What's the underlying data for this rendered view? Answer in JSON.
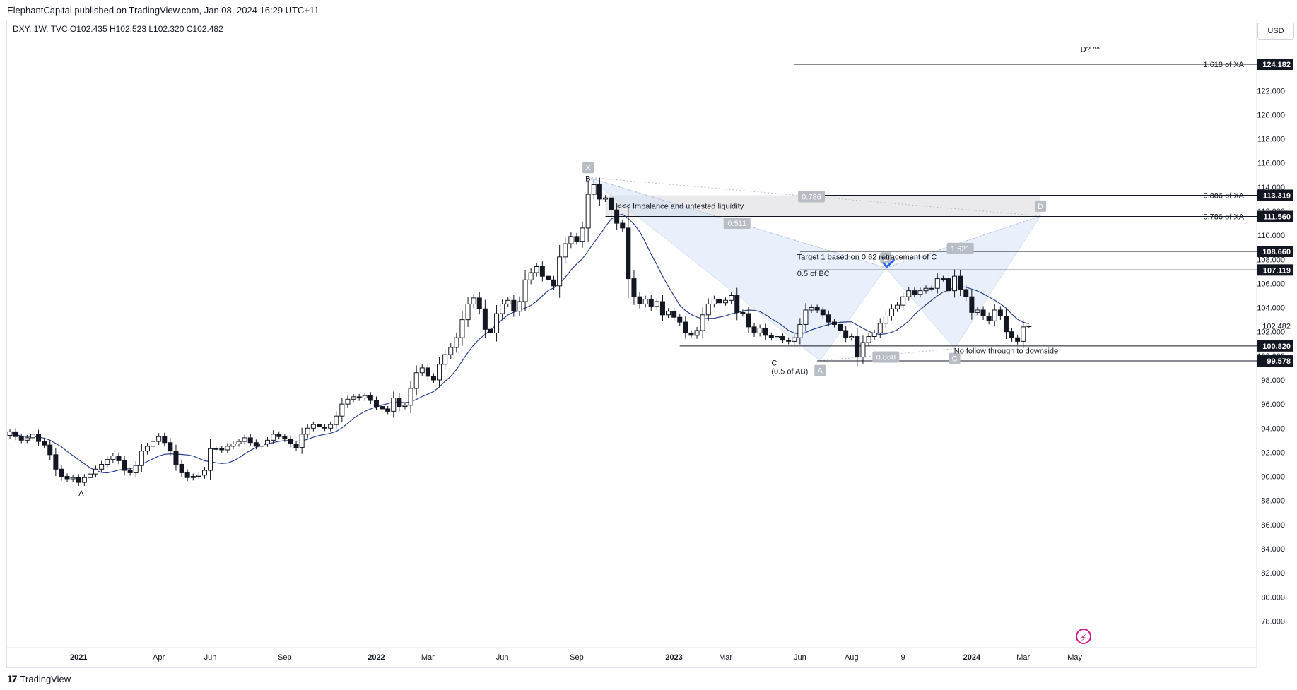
{
  "header": {
    "publisher": "ElephantCapital published on TradingView.com, Jan 08, 2024 16:29 UTC+11",
    "symbol_line": "DXY, 1W, TVC  O102.435  H102.523  L102.320  C102.482"
  },
  "currency": "USD",
  "footer": {
    "logo": "17",
    "brand": "TradingView"
  },
  "icons": {
    "bolt": "lightning-bolt-icon"
  },
  "chart_data": {
    "type": "candlestick",
    "symbol": "DXY",
    "interval": "1W",
    "ohlc_last": {
      "open": 102.435,
      "high": 102.523,
      "low": 102.32,
      "close": 102.482
    },
    "ylim": [
      76.5,
      126.0
    ],
    "y_ticks": [
      "78.000",
      "80.000",
      "82.000",
      "84.000",
      "86.000",
      "88.000",
      "90.000",
      "92.000",
      "94.000",
      "96.000",
      "98.000",
      "100.000",
      "102.000",
      "104.000",
      "106.000",
      "108.000",
      "110.000",
      "112.000",
      "114.000",
      "116.000",
      "118.000",
      "120.000",
      "122.000"
    ],
    "x_labels": [
      "2021",
      "Apr",
      "Jun",
      "Sep",
      "2022",
      "Mar",
      "Jun",
      "Sep",
      "2023",
      "Mar",
      "Jun",
      "Aug",
      "9",
      "2024",
      "Mar",
      "May"
    ],
    "bar_count": 185,
    "x_label_bars": [
      12,
      26,
      35,
      48,
      64,
      73,
      86,
      99,
      116,
      125,
      138,
      147,
      156,
      168,
      177,
      186
    ],
    "closes": [
      93.7,
      93.3,
      93.0,
      93.2,
      93.5,
      92.9,
      92.6,
      91.8,
      90.6,
      90.0,
      89.8,
      89.9,
      89.5,
      89.9,
      90.2,
      90.6,
      91.0,
      91.4,
      91.7,
      91.3,
      90.5,
      90.3,
      90.9,
      92.1,
      92.5,
      92.9,
      93.3,
      92.8,
      92.1,
      91.0,
      90.3,
      89.9,
      90.0,
      90.1,
      90.5,
      92.3,
      92.3,
      92.2,
      92.5,
      92.7,
      92.9,
      93.2,
      92.8,
      92.5,
      92.7,
      93.0,
      93.5,
      93.3,
      93.1,
      92.7,
      92.4,
      93.5,
      94.0,
      94.3,
      94.1,
      94.0,
      94.3,
      95.0,
      96.0,
      96.4,
      96.6,
      96.5,
      96.7,
      96.3,
      95.8,
      95.6,
      95.4,
      96.5,
      95.8,
      95.9,
      97.3,
      98.6,
      99.0,
      98.3,
      98.0,
      99.3,
      100.1,
      100.7,
      101.5,
      103.0,
      104.3,
      104.8,
      103.9,
      102.2,
      101.9,
      103.5,
      104.3,
      104.6,
      103.7,
      104.5,
      106.3,
      106.9,
      107.4,
      106.6,
      106.3,
      105.8,
      108.2,
      109.3,
      109.9,
      109.5,
      110.6,
      113.4,
      114.2,
      113.0,
      113.1,
      112.1,
      111.0,
      110.6,
      106.4,
      104.9,
      104.3,
      104.7,
      104.1,
      104.5,
      103.4,
      103.7,
      103.2,
      102.8,
      101.9,
      101.7,
      102.1,
      103.4,
      104.3,
      104.7,
      104.4,
      104.6,
      105.0,
      103.6,
      103.5,
      102.4,
      101.9,
      102.3,
      101.7,
      101.5,
      101.6,
      101.3,
      101.2,
      101.5,
      102.6,
      103.8,
      104.0,
      103.8,
      103.4,
      102.8,
      102.6,
      102.1,
      101.5,
      101.6,
      99.9,
      101.1,
      101.6,
      101.9,
      102.7,
      103.3,
      103.9,
      104.2,
      104.9,
      105.4,
      105.1,
      105.4,
      105.6,
      105.6,
      106.4,
      106.4,
      105.4,
      106.6,
      105.5,
      104.9,
      103.6,
      103.8,
      103.3,
      102.9,
      103.8,
      103.3,
      102.0,
      101.5,
      101.2,
      102.4,
      102.482
    ],
    "moving_average": {
      "type": "SMA",
      "color": "#2a3e8c"
    },
    "annotations": [
      {
        "text": "B",
        "bar": 100.5,
        "y": 114.5
      },
      {
        "text": "A",
        "bar": 12,
        "y": 88.4
      },
      {
        "text": "C",
        "bar": 133,
        "y": 99.2
      },
      {
        "text": "(0.5 of AB)",
        "bar": 133,
        "y": 98.5
      },
      {
        "text": "<<<  Imbalance and untested liquidity",
        "bar": 106,
        "y": 112.2
      },
      {
        "text": "Target 1 based on 0.62 retracement of C",
        "bar": 137.5,
        "y": 108.0
      },
      {
        "text": "0.5 of BC",
        "bar": 137.5,
        "y": 106.6
      },
      {
        "text": "No follow through to downside",
        "bar": 174,
        "y": 100.2
      },
      {
        "text": "D? ^^",
        "bar": 187,
        "y": 125.2
      }
    ],
    "horizontal_levels": [
      {
        "price": 124.182,
        "label": "124.182",
        "text": "1.618 of XA",
        "from_bar": 137
      },
      {
        "price": 113.319,
        "label": "113.319",
        "text": "0.886 of XA",
        "from_bar": 138
      },
      {
        "price": 111.56,
        "label": "111.560",
        "text": "0.786 of XA",
        "from_bar": 104
      },
      {
        "price": 108.66,
        "label": "108.660",
        "text": "",
        "from_bar": 138
      },
      {
        "price": 107.119,
        "label": "107.119",
        "text": "",
        "from_bar": 138
      },
      {
        "price": 100.82,
        "label": "100.820",
        "text": "",
        "from_bar": 117
      },
      {
        "price": 99.578,
        "label": "99.578",
        "text": "",
        "from_bar": 141
      }
    ],
    "current_price": {
      "price": 102.482,
      "label": "102.482"
    },
    "imbalance_zone": {
      "top": 113.319,
      "bottom": 111.56,
      "from_bar": 104,
      "to_bar": 180
    },
    "harmonic": {
      "points": [
        {
          "label": "X",
          "bar": 101,
          "price": 114.8
        },
        {
          "label": "A",
          "bar": 141.5,
          "price": 99.6
        },
        {
          "label": "B",
          "bar": 153,
          "price": 107.3
        },
        {
          "label": "C",
          "bar": 165,
          "price": 100.6
        },
        {
          "label": "D",
          "bar": 180,
          "price": 111.6
        }
      ],
      "ratios": [
        {
          "label": "0.511",
          "bar": 127,
          "price": 111.0
        },
        {
          "label": "0.786",
          "bar": 140,
          "price": 113.2
        },
        {
          "label": "1.621",
          "bar": 166,
          "price": 108.9
        },
        {
          "label": "0.868",
          "bar": 153,
          "price": 99.9
        }
      ]
    },
    "grid": false,
    "legend": "none"
  }
}
